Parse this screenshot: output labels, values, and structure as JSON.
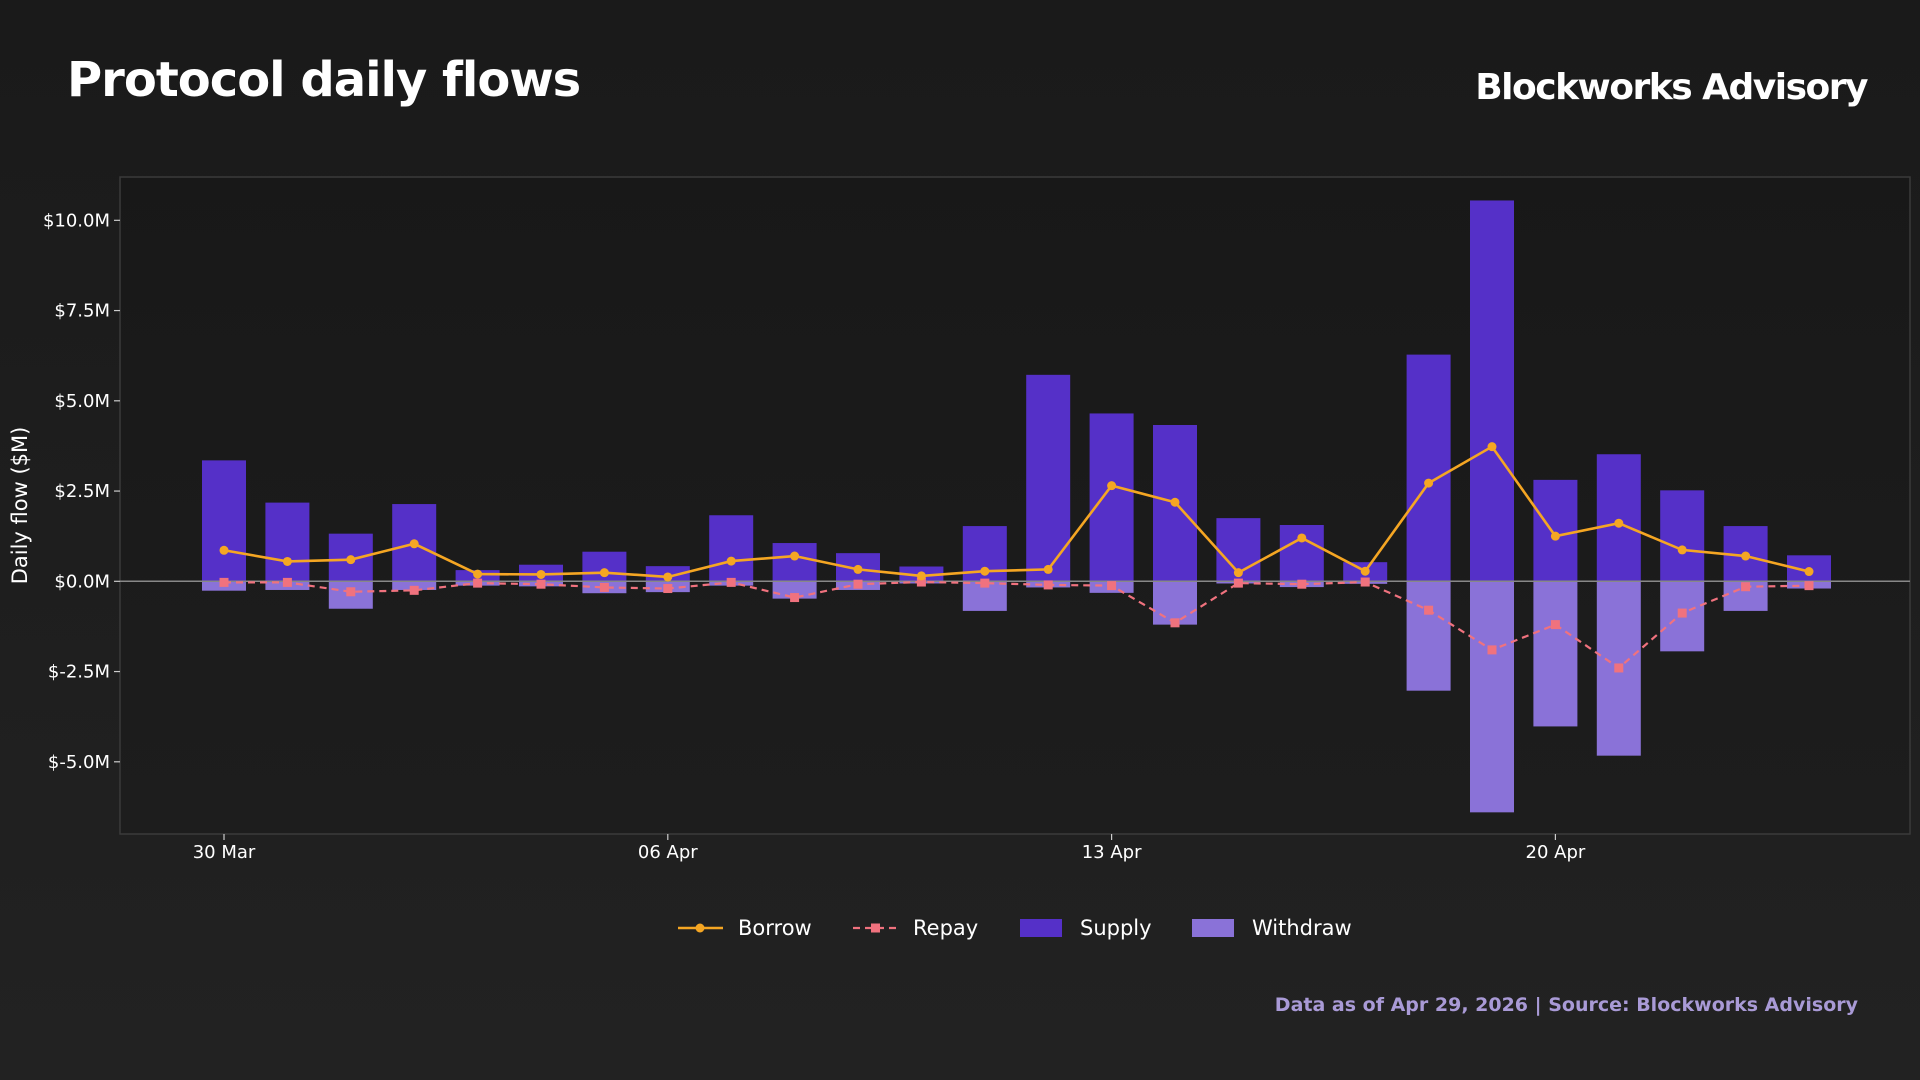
{
  "header": {
    "title": "Protocol daily flows",
    "brand": "Blockworks Advisory"
  },
  "footer": {
    "source": "Data as of Apr 29, 2026 | Source: Blockworks Advisory"
  },
  "colors": {
    "borrow": "#f5a623",
    "repay": "#f0727e",
    "supply": "#5530c8",
    "withdraw": "#8a72d8",
    "axis_text": "#ffffff",
    "zero_line": "#888888",
    "frame": "#3a3a3a"
  },
  "chart_data": {
    "type": "bar",
    "ylabel": "Daily flow ($M)",
    "ylim": [
      -7.0,
      11.2
    ],
    "yticks": [
      10.0,
      7.5,
      5.0,
      2.5,
      0.0,
      -2.5,
      -5.0
    ],
    "ytick_labels": [
      "$10.0M",
      "$7.5M",
      "$5.0M",
      "$2.5M",
      "$0.0M",
      "$-2.5M",
      "$-5.0M"
    ],
    "xticks": [
      {
        "index": 0,
        "label": "30 Mar"
      },
      {
        "index": 7,
        "label": "06 Apr"
      },
      {
        "index": 14,
        "label": "13 Apr"
      },
      {
        "index": 21,
        "label": "20 Apr"
      }
    ],
    "categories": [
      "2026-03-30",
      "2026-03-31",
      "2026-04-01",
      "2026-04-02",
      "2026-04-03",
      "2026-04-04",
      "2026-04-05",
      "2026-04-06",
      "2026-04-07",
      "2026-04-08",
      "2026-04-09",
      "2026-04-10",
      "2026-04-11",
      "2026-04-12",
      "2026-04-13",
      "2026-04-14",
      "2026-04-15",
      "2026-04-16",
      "2026-04-17",
      "2026-04-18",
      "2026-04-19",
      "2026-04-20",
      "2026-04-21",
      "2026-04-22",
      "2026-04-23",
      "2026-04-24"
    ],
    "legend": [
      "Borrow",
      "Repay",
      "Supply",
      "Withdraw"
    ],
    "legend_position": "bottom-center",
    "grid": false,
    "series": [
      {
        "name": "Supply",
        "type": "bar",
        "values": [
          3.35,
          2.18,
          1.32,
          2.14,
          0.31,
          0.46,
          0.82,
          0.42,
          1.83,
          1.06,
          0.78,
          0.41,
          1.53,
          5.72,
          4.65,
          4.33,
          1.75,
          1.56,
          0.53,
          6.28,
          10.55,
          2.81,
          3.52,
          2.52,
          1.53,
          0.72
        ]
      },
      {
        "name": "Withdraw",
        "type": "bar",
        "values": [
          -0.26,
          -0.24,
          -0.76,
          -0.24,
          -0.12,
          -0.14,
          -0.33,
          -0.3,
          -0.12,
          -0.48,
          -0.24,
          -0.06,
          -0.82,
          -0.17,
          -0.32,
          -1.2,
          -0.06,
          -0.16,
          -0.07,
          -3.03,
          -6.4,
          -4.02,
          -4.83,
          -1.94,
          -0.82,
          -0.2
        ]
      },
      {
        "name": "Borrow",
        "type": "line",
        "values": [
          0.86,
          0.55,
          0.6,
          1.04,
          0.2,
          0.19,
          0.24,
          0.12,
          0.56,
          0.7,
          0.33,
          0.15,
          0.28,
          0.33,
          2.65,
          2.19,
          0.24,
          1.2,
          0.28,
          2.72,
          3.73,
          1.25,
          1.61,
          0.87,
          0.7,
          0.27
        ]
      },
      {
        "name": "Repay",
        "type": "line",
        "values": [
          -0.03,
          -0.03,
          -0.29,
          -0.25,
          -0.05,
          -0.08,
          -0.17,
          -0.2,
          -0.03,
          -0.45,
          -0.08,
          -0.02,
          -0.05,
          -0.1,
          -0.12,
          -1.15,
          -0.05,
          -0.08,
          -0.02,
          -0.8,
          -1.9,
          -1.2,
          -2.4,
          -0.88,
          -0.15,
          -0.12
        ]
      }
    ]
  }
}
